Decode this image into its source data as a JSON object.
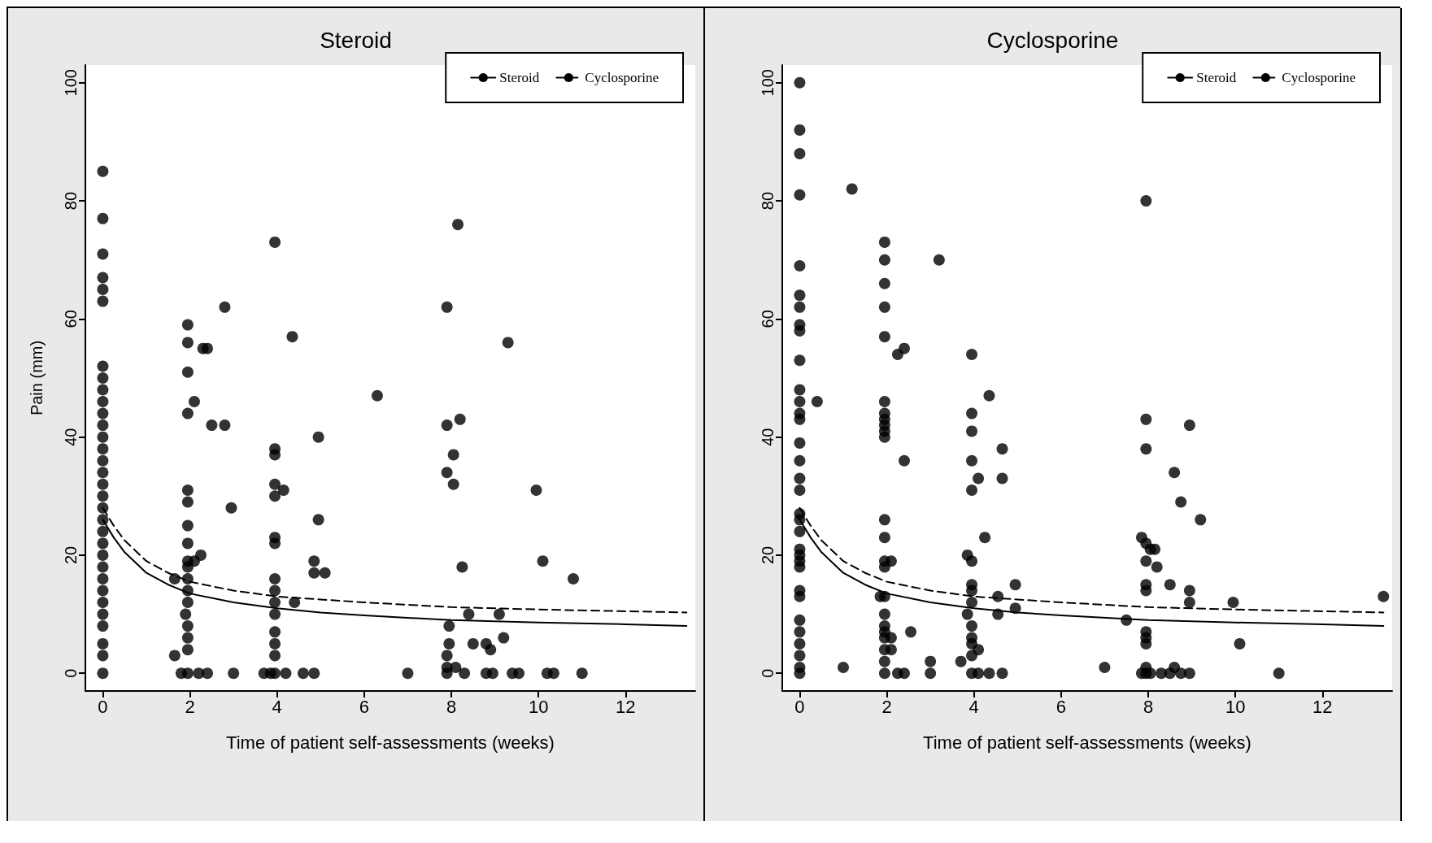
{
  "chart_data": [
    {
      "type": "scatter",
      "title": "Steroid",
      "xlabel": "Time of patient self-assessments (weeks)",
      "ylabel": "Pain (mm)",
      "xlim": [
        -0.4,
        13.6
      ],
      "ylim": [
        -3,
        103
      ],
      "xticks": [
        0,
        2,
        4,
        6,
        8,
        10,
        12
      ],
      "yticks": [
        0,
        20,
        40,
        60,
        80,
        100
      ],
      "grid": false,
      "legend": "top right",
      "series": [
        {
          "color": "#000000",
          "marker": "circle",
          "x": [
            0,
            0,
            0,
            0,
            0,
            0,
            0,
            0,
            0,
            0,
            0,
            0,
            0,
            0,
            0,
            0,
            0,
            0,
            0,
            0,
            0,
            0,
            0,
            0,
            0,
            0,
            0,
            0,
            0,
            0,
            0,
            0,
            1.95,
            1.95,
            1.95,
            1.95,
            1.95,
            1.95,
            1.95,
            1.95,
            1.95,
            1.95,
            1.95,
            1.95,
            1.95,
            1.95,
            1.95,
            1.95,
            1.95,
            2.1,
            1.65,
            1.65,
            1.9,
            2.1,
            2.25,
            2.3,
            2.4,
            1.8,
            2.2,
            2.4,
            2.5,
            2.8,
            2.8,
            2.95,
            3,
            3.95,
            3.95,
            3.95,
            3.95,
            3.95,
            3.95,
            3.95,
            3.95,
            3.95,
            3.95,
            3.95,
            3.95,
            3.95,
            3.95,
            3.95,
            4.15,
            3.7,
            3.85,
            4.2,
            4.35,
            4.4,
            4.6,
            4.85,
            4.85,
            4.85,
            4.95,
            4.95,
            5.1,
            6.3,
            7,
            7.9,
            7.9,
            8.2,
            8.15,
            8.05,
            7.9,
            8.05,
            8.25,
            7.95,
            7.95,
            7.9,
            7.9,
            7.9,
            8.1,
            8.3,
            8.4,
            8.5,
            8.8,
            8.9,
            8.8,
            8.95,
            9.1,
            9.2,
            9.3,
            9.4,
            9.55,
            9.95,
            10.1,
            10.2,
            10.35,
            10.8,
            11
          ],
          "values": [
            85,
            77,
            71,
            67,
            65,
            63,
            52,
            50,
            48,
            46,
            44,
            42,
            40,
            38,
            36,
            34,
            32,
            30,
            28,
            26,
            24,
            22,
            20,
            18,
            16,
            14,
            12,
            10,
            8,
            5,
            3,
            0,
            59,
            56,
            51,
            44,
            31,
            29,
            25,
            22,
            19,
            18,
            16,
            14,
            12,
            8,
            6,
            4,
            0,
            46,
            16,
            3,
            10,
            19,
            20,
            55,
            55,
            0,
            0,
            0,
            42,
            62,
            42,
            28,
            0,
            73,
            38,
            37,
            32,
            30,
            23,
            22,
            16,
            14,
            12,
            10,
            7,
            5,
            3,
            0,
            31,
            0,
            0,
            0,
            57,
            12,
            0,
            19,
            17,
            0,
            40,
            26,
            17,
            47,
            0,
            62,
            42,
            43,
            76,
            37,
            34,
            32,
            18,
            8,
            5,
            3,
            1,
            0,
            1,
            0,
            10,
            5,
            5,
            4,
            0,
            0,
            10,
            6,
            56,
            0,
            0,
            31,
            19,
            0,
            0,
            16,
            0
          ]
        },
        {
          "type": "line",
          "name": "Steroid",
          "color": "#000000",
          "marker": "none",
          "line_style": "solid",
          "x": [
            0,
            0.25,
            0.5,
            1,
            1.5,
            2,
            3,
            4,
            5,
            6,
            8,
            10,
            12,
            13.4
          ],
          "values": [
            26,
            23,
            20.5,
            17,
            15,
            13.5,
            12,
            11,
            10.3,
            9.8,
            9,
            8.6,
            8.3,
            8
          ]
        },
        {
          "type": "line",
          "name": "Cyclosporine",
          "color": "#000000",
          "marker": "none",
          "line_style": "dashed",
          "x": [
            0,
            0.25,
            0.5,
            1,
            1.5,
            2,
            3,
            4,
            5,
            6,
            8,
            10,
            12,
            13.4
          ],
          "values": [
            28,
            25,
            22.5,
            19,
            17,
            15.5,
            14,
            13,
            12.5,
            12,
            11.2,
            10.8,
            10.5,
            10.3
          ]
        }
      ]
    },
    {
      "type": "scatter",
      "title": "Cyclosporine",
      "xlabel": "Time of patient self-assessments (weeks)",
      "xlim": [
        -0.4,
        13.6
      ],
      "ylim": [
        -3,
        103
      ],
      "xticks": [
        0,
        2,
        4,
        6,
        8,
        10,
        12
      ],
      "yticks": [
        0,
        20,
        40,
        60,
        80,
        100
      ],
      "grid": false,
      "legend": "top right",
      "series": [
        {
          "color": "#000000",
          "marker": "circle",
          "x": [
            0,
            0,
            0,
            0,
            0,
            0,
            0,
            0,
            0,
            0,
            0,
            0,
            0,
            0,
            0,
            0,
            0,
            0,
            0,
            0,
            0,
            0,
            0,
            0,
            0,
            0,
            0,
            0,
            0,
            0,
            0,
            0,
            0,
            0.4,
            1,
            1.2,
            1.95,
            1.95,
            1.95,
            1.95,
            1.95,
            1.95,
            1.95,
            1.95,
            1.95,
            1.95,
            1.95,
            1.95,
            1.95,
            1.95,
            1.95,
            1.85,
            1.95,
            1.95,
            1.95,
            1.95,
            1.95,
            1.95,
            1.95,
            1.95,
            2.1,
            2.1,
            2.1,
            2.25,
            2.25,
            2.4,
            2.4,
            2.4,
            2.55,
            3,
            3,
            3.2,
            3.95,
            3.95,
            3.95,
            3.95,
            3.95,
            3.95,
            3.95,
            3.95,
            3.85,
            3.95,
            3.95,
            3.95,
            3.95,
            3.95,
            3.85,
            3.95,
            3.7,
            4.1,
            4.1,
            4.1,
            4.25,
            4.35,
            4.35,
            4.55,
            4.55,
            4.65,
            4.65,
            4.65,
            4.95,
            4.95,
            7,
            7.5,
            7.95,
            7.95,
            7.95,
            7.95,
            7.95,
            7.95,
            7.95,
            7.95,
            7.95,
            7.95,
            7.95,
            7.95,
            7.85,
            7.85,
            8.05,
            8.05,
            8.15,
            8.2,
            8.3,
            8.5,
            8.5,
            8.6,
            8.6,
            8.75,
            8.75,
            8.95,
            8.95,
            8.95,
            8.95,
            9.2,
            9.95,
            10.1,
            11,
            13.4
          ],
          "values": [
            100,
            92,
            88,
            81,
            69,
            64,
            62,
            59,
            58,
            53,
            48,
            46,
            44,
            43,
            39,
            36,
            33,
            31,
            27,
            26,
            24,
            21,
            20,
            19,
            18,
            14,
            13,
            9,
            7,
            5,
            3,
            1,
            0,
            46,
            1,
            82,
            73,
            70,
            66,
            62,
            57,
            46,
            44,
            43,
            42,
            41,
            40,
            26,
            23,
            19,
            18,
            13,
            13,
            10,
            8,
            7,
            6,
            4,
            2,
            0,
            19,
            6,
            4,
            54,
            0,
            55,
            36,
            0,
            7,
            2,
            0,
            70,
            54,
            44,
            41,
            36,
            31,
            15,
            14,
            12,
            10,
            8,
            6,
            5,
            3,
            0,
            20,
            19,
            2,
            33,
            4,
            0,
            23,
            47,
            0,
            13,
            10,
            38,
            33,
            0,
            15,
            11,
            1,
            9,
            80,
            43,
            38,
            22,
            19,
            15,
            14,
            7,
            6,
            5,
            1,
            0,
            23,
            0,
            21,
            0,
            21,
            18,
            0,
            15,
            0,
            34,
            1,
            29,
            0,
            42,
            14,
            12,
            0,
            26,
            12,
            5,
            0,
            13
          ]
        },
        {
          "type": "line",
          "name": "Steroid",
          "color": "#000000",
          "marker": "none",
          "line_style": "solid",
          "x": [
            0,
            0.25,
            0.5,
            1,
            1.5,
            2,
            3,
            4,
            5,
            6,
            8,
            10,
            12,
            13.4
          ],
          "values": [
            26,
            23,
            20.5,
            17,
            15,
            13.5,
            12,
            11,
            10.3,
            9.8,
            9,
            8.6,
            8.3,
            8
          ]
        },
        {
          "type": "line",
          "name": "Cyclosporine",
          "color": "#000000",
          "marker": "none",
          "line_style": "dashed",
          "x": [
            0,
            0.25,
            0.5,
            1,
            1.5,
            2,
            3,
            4,
            5,
            6,
            8,
            10,
            12,
            13.4
          ],
          "values": [
            28,
            25,
            22.5,
            19,
            17,
            15.5,
            14,
            13,
            12.5,
            12,
            11.2,
            10.8,
            10.5,
            10.3
          ]
        }
      ]
    }
  ]
}
